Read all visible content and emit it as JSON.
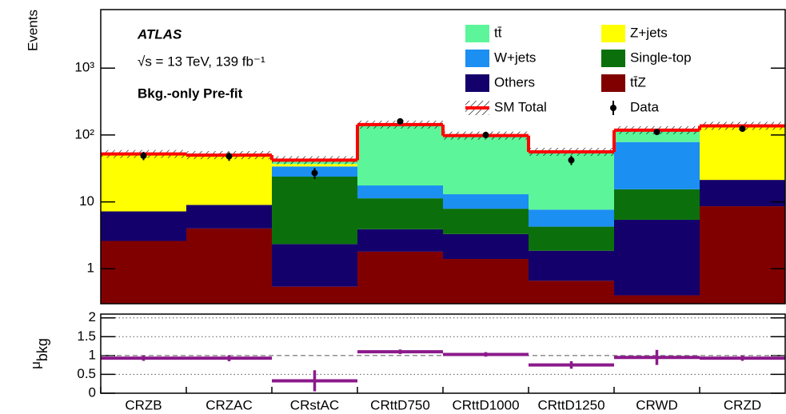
{
  "chart_data": [
    {
      "type": "stacked-hist",
      "log": true,
      "ylabel": "Events",
      "annotations": [
        "ATLAS",
        "√s = 13 TeV, 139 fb⁻¹",
        "Bkg.-only Pre-fit"
      ],
      "categories": [
        "CRZB",
        "CRZAC",
        "CRstAC",
        "CRttD750",
        "CRttD1000",
        "CRttD1250",
        "CRWD",
        "CRZD"
      ],
      "series": [
        {
          "name": "tt̄Z",
          "color": "#800000",
          "values": [
            2.6,
            4,
            0.54,
            1.8,
            1.4,
            0.66,
            0.4,
            8.6
          ]
        },
        {
          "name": "Others",
          "color": "#14006b",
          "values": [
            4.6,
            5,
            1.8,
            2.1,
            1.9,
            1.2,
            5,
            12.7
          ]
        },
        {
          "name": "Single-top",
          "color": "#0b700b",
          "values": [
            0,
            0,
            21.5,
            7.4,
            4.6,
            2.4,
            10,
            0
          ]
        },
        {
          "name": "W+jets",
          "color": "#1b8ff2",
          "values": [
            0,
            0,
            10,
            6.3,
            5.1,
            3.4,
            63,
            0
          ]
        },
        {
          "name": "Z+jets",
          "color": "#ffff00",
          "values": [
            43,
            38.5,
            3,
            0,
            0,
            0,
            0,
            113
          ]
        },
        {
          "name": "tt̄",
          "color": "#5cf59a",
          "values": [
            2,
            2.5,
            5,
            125,
            85,
            48,
            40,
            3
          ]
        }
      ],
      "total": {
        "name": "SM Total",
        "color": "#ff0000",
        "values": [
          52,
          50,
          42,
          143,
          98,
          56,
          118,
          137
        ]
      },
      "data": {
        "name": "Data",
        "color": "#000000",
        "values": [
          49,
          48,
          27,
          160,
          100,
          42,
          111,
          124
        ],
        "errors": [
          7,
          7,
          5,
          12,
          10,
          6.5,
          10.6,
          11
        ]
      },
      "ylim": [
        0.3,
        7500
      ],
      "yticks": [
        1,
        10,
        {
          "value": 100,
          "label": "10²"
        },
        {
          "value": 1000,
          "label": "10³"
        }
      ]
    },
    {
      "type": "ratio",
      "ylabel": "μ",
      "ylabel_sub": "bkg",
      "color": "#8b1a8b",
      "values": [
        0.93,
        0.93,
        0.33,
        1.1,
        1.03,
        0.75,
        0.95,
        0.93
      ],
      "errors": [
        0.07,
        0.08,
        0.28,
        0.06,
        0.06,
        0.1,
        0.2,
        0.07
      ],
      "ylim": [
        0,
        2.1
      ],
      "yticks": [
        0,
        0.5,
        1,
        1.5,
        2
      ],
      "grid": true,
      "reference": 1
    }
  ]
}
